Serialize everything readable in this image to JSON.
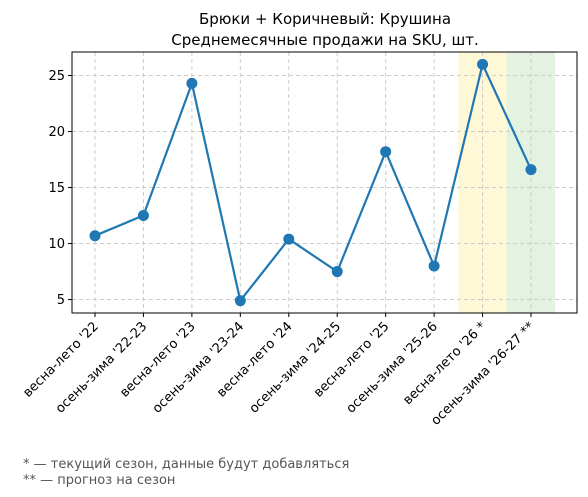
{
  "chart_data": {
    "type": "line",
    "title": "Брюки + Коричневый: Крушина",
    "subtitle": "Среднемесячные продажи на SKU, шт.",
    "xlabel": "",
    "ylabel": "",
    "categories": [
      "весна-лето '22",
      "осень-зима '22-23",
      "весна-лето '23",
      "осень-зима '23-24",
      "весна-лето '24",
      "осень-зима '24-25",
      "весна-лето '25",
      "осень-зима '25-26",
      "весна-лето '26 *",
      "осень-зима '26-27 **"
    ],
    "series": [
      {
        "values": [
          10.7,
          12.5,
          24.3,
          4.9,
          10.4,
          7.5,
          18.2,
          8.0,
          26.0,
          16.6
        ]
      }
    ],
    "ylim": [
      3.8,
      27.1
    ],
    "yticks": [
      5,
      10,
      15,
      20,
      25
    ],
    "grid": true,
    "highlights": [
      {
        "category_index": 8,
        "color": "#fff8d6"
      },
      {
        "category_index": 9,
        "color": "#e4f2e1"
      }
    ],
    "line_color": "#1f77b4"
  },
  "footnotes": {
    "current": "* — текущий сезон, данные будут добавляться",
    "forecast": "** — прогноз на сезон"
  }
}
